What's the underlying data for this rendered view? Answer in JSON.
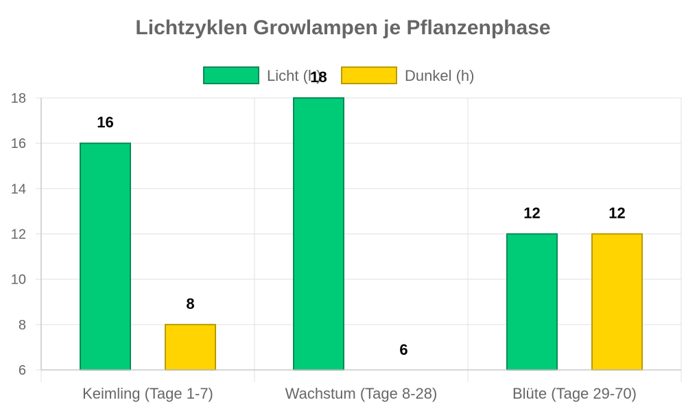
{
  "chart_data": {
    "type": "bar",
    "title": "Lichtzyklen Growlampen je Pflanzenphase",
    "xlabel": "",
    "ylabel": "",
    "categories": [
      "Keimling (Tage 1-7)",
      "Wachstum (Tage 8-28)",
      "Blüte (Tage 29-70)"
    ],
    "series": [
      {
        "name": "Licht (h)",
        "values": [
          16,
          18,
          12
        ],
        "color": "#00cc77",
        "border": "#0a8a55"
      },
      {
        "name": "Dunkel (h)",
        "values": [
          8,
          6,
          12
        ],
        "color": "#ffd400",
        "border": "#b89a00"
      }
    ],
    "ylim": [
      6,
      18
    ],
    "yticks": [
      6,
      8,
      10,
      12,
      14,
      16,
      18
    ],
    "grid": true,
    "legend_position": "top-center"
  }
}
